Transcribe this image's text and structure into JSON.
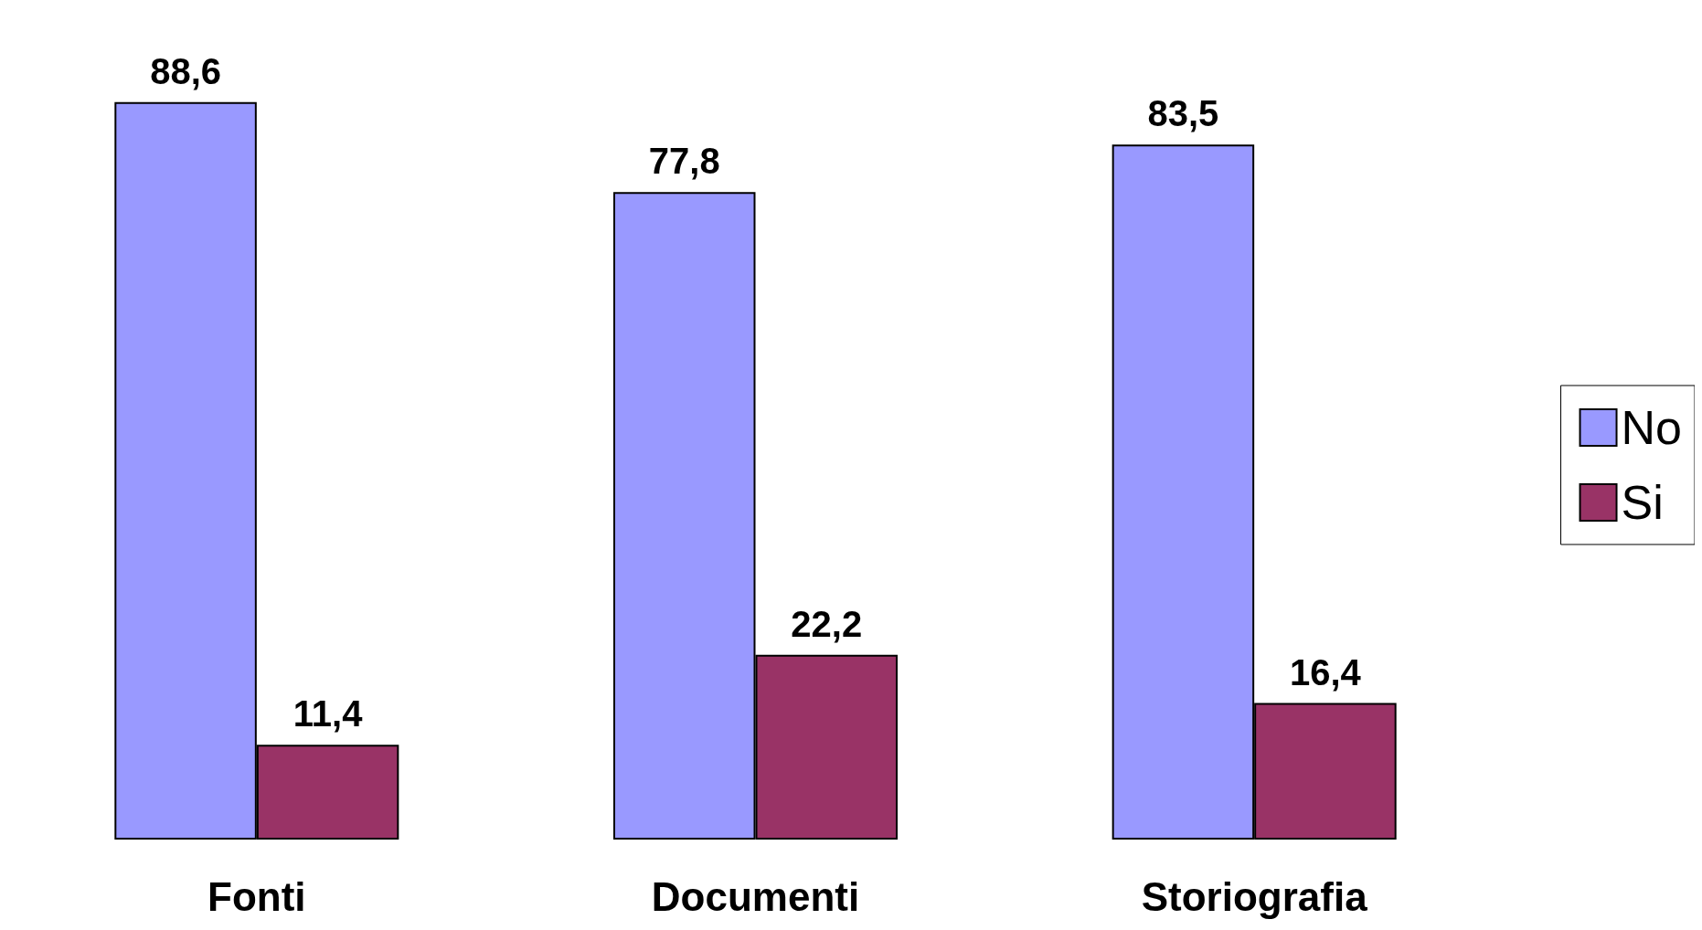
{
  "chart_data": {
    "type": "bar",
    "categories": [
      "Fonti",
      "Documenti",
      "Storiografia"
    ],
    "series": [
      {
        "name": "No",
        "color": "#9999ff",
        "values": [
          88.6,
          77.8,
          83.5
        ],
        "value_labels": [
          "88,6",
          "77,8",
          "83,5"
        ]
      },
      {
        "name": "Si",
        "color": "#993366",
        "values": [
          11.4,
          22.2,
          16.4
        ],
        "value_labels": [
          "11,4",
          "22,2",
          "16,4"
        ]
      }
    ],
    "legend": "right"
  }
}
